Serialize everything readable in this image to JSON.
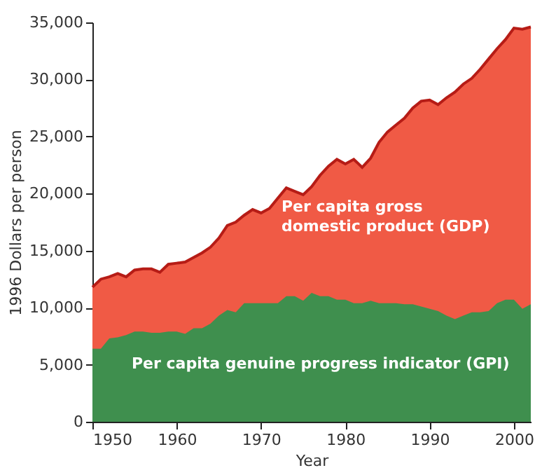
{
  "chart_data": {
    "type": "area",
    "xlabel": "Year",
    "ylabel": "1996 Dollars per person",
    "x": [
      1950,
      1951,
      1952,
      1953,
      1954,
      1955,
      1956,
      1957,
      1958,
      1959,
      1960,
      1961,
      1962,
      1963,
      1964,
      1965,
      1966,
      1967,
      1968,
      1969,
      1970,
      1971,
      1972,
      1973,
      1974,
      1975,
      1976,
      1977,
      1978,
      1979,
      1980,
      1981,
      1982,
      1983,
      1984,
      1985,
      1986,
      1987,
      1988,
      1989,
      1990,
      1991,
      1992,
      1993,
      1994,
      1995,
      1996,
      1997,
      1998,
      1999,
      2000,
      2001,
      2002
    ],
    "series": [
      {
        "name": "Per capita gross domestic product (GDP)",
        "color": "#f05a45",
        "values": [
          11800,
          12500,
          12700,
          13000,
          12700,
          13300,
          13400,
          13400,
          13100,
          13800,
          13900,
          14000,
          14400,
          14800,
          15300,
          16100,
          17200,
          17500,
          18100,
          18600,
          18300,
          18700,
          19600,
          20500,
          20200,
          19900,
          20600,
          21600,
          22400,
          23000,
          22600,
          23000,
          22300,
          23100,
          24500,
          25400,
          26000,
          26600,
          27500,
          28100,
          28200,
          27800,
          28400,
          28900,
          29600,
          30100,
          30900,
          31800,
          32700,
          33500,
          34500,
          34400,
          34600
        ]
      },
      {
        "name": "Per capita genuine progress indicator (GPI)",
        "color": "#3f8f4e",
        "values": [
          6400,
          6400,
          7300,
          7400,
          7600,
          7900,
          7900,
          7800,
          7800,
          7900,
          7900,
          7700,
          8200,
          8200,
          8600,
          9300,
          9800,
          9600,
          10400,
          10400,
          10400,
          10400,
          10400,
          11000,
          11000,
          10600,
          11300,
          11000,
          11000,
          10700,
          10700,
          10400,
          10400,
          10600,
          10400,
          10400,
          10400,
          10300,
          10300,
          10100,
          9900,
          9700,
          9300,
          9000,
          9300,
          9600,
          9600,
          9700,
          10400,
          10700,
          10700,
          9900,
          10300
        ]
      }
    ],
    "xlim": [
      1950,
      2002
    ],
    "xticks": [
      1950,
      1960,
      1970,
      1980,
      1990,
      2000
    ],
    "ylim": [
      0,
      35000
    ],
    "yticks": [
      0,
      {
        "value": 5000,
        "label": "5,000"
      },
      {
        "value": 10000,
        "label": "10,000"
      },
      {
        "value": 15000,
        "label": "15,000"
      },
      {
        "value": 20000,
        "label": "20,000"
      },
      {
        "value": 25000,
        "label": "25,000"
      },
      {
        "value": 30000,
        "label": "30,000"
      },
      {
        "value": 35000,
        "label": "35,000"
      }
    ],
    "grid": false
  }
}
